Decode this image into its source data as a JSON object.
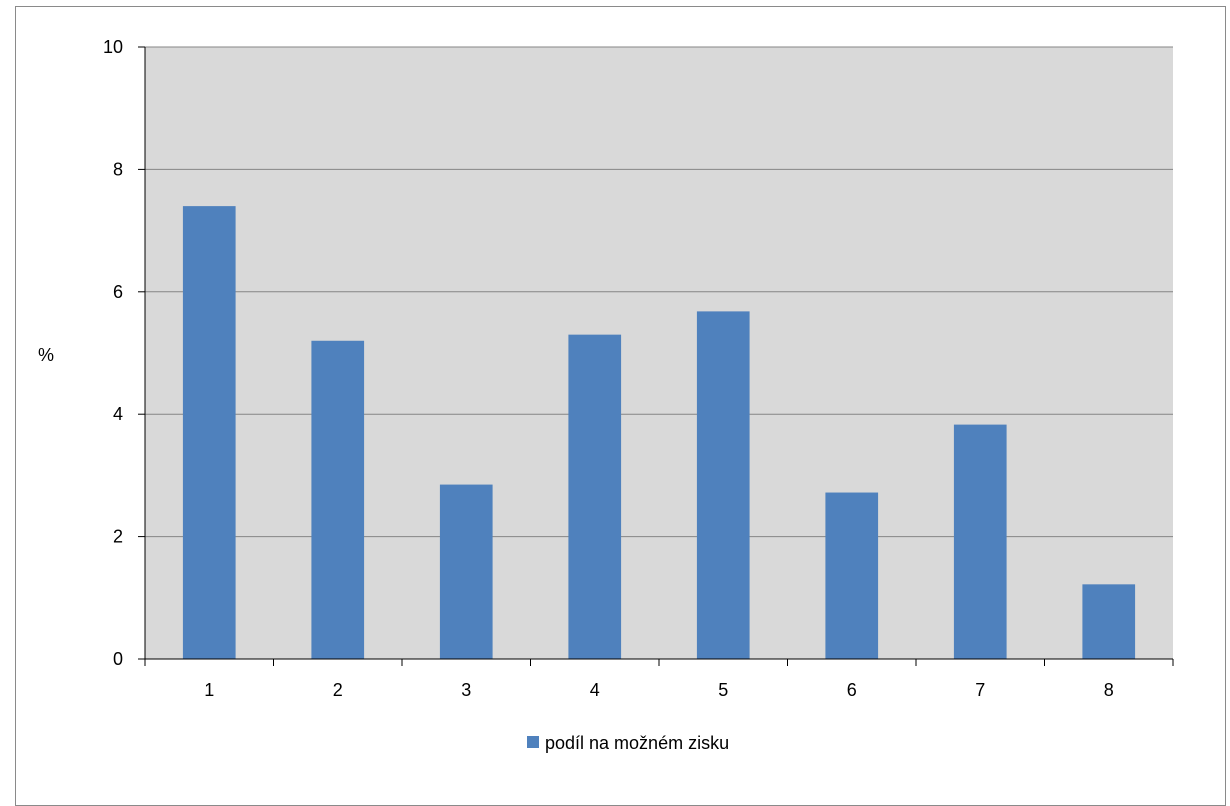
{
  "chart_data": {
    "type": "bar",
    "categories": [
      "1",
      "2",
      "3",
      "4",
      "5",
      "6",
      "7",
      "8"
    ],
    "series": [
      {
        "name": "podíl na možném zisku",
        "values": [
          7.4,
          5.2,
          2.85,
          5.3,
          5.68,
          2.72,
          3.83,
          1.22
        ]
      }
    ],
    "xlabel": "",
    "ylabel": "%",
    "ylim": [
      0,
      10
    ],
    "yticks": [
      "0",
      "2",
      "4",
      "6",
      "8",
      "10"
    ],
    "grid": true,
    "legend": "bottom",
    "colors": {
      "bar": "#4f81bd",
      "plot_background": "#d9d9d9",
      "gridline": "#868686",
      "axis": "#000000"
    }
  }
}
